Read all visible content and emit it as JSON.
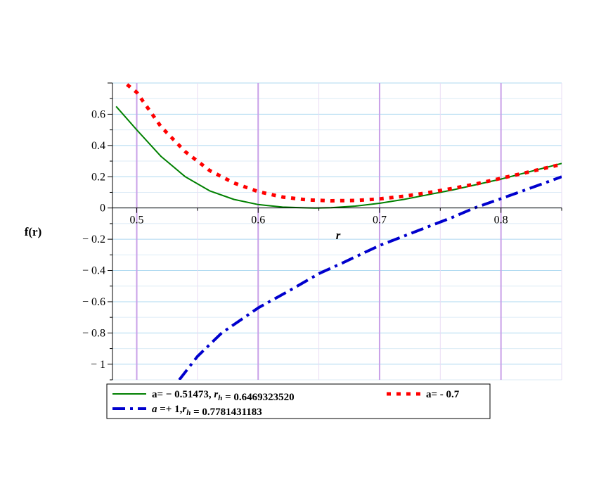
{
  "chart_data": {
    "type": "line",
    "xlabel": "r",
    "ylabel": "f(r)",
    "xlim": [
      0.48,
      0.85
    ],
    "ylim": [
      -1.1,
      0.8
    ],
    "x_ticks": [
      0.5,
      0.6,
      0.7,
      0.8
    ],
    "x_tick_labels": [
      "0.5",
      "0.6",
      "0.7",
      "0.8"
    ],
    "y_ticks": [
      0.6,
      0.4,
      0.2,
      0,
      -0.2,
      -0.4,
      -0.6,
      -0.8,
      -1
    ],
    "y_tick_labels": [
      "0.6",
      "0.4",
      "0.2",
      "0",
      "− 0.2",
      "− 0.4",
      "− 0.6",
      "− 0.8",
      "− 1"
    ],
    "grid": true,
    "legend_position": "bottom",
    "series": [
      {
        "label_parts": [
          {
            "t": "a= − 0.51473, ",
            "i": false
          },
          {
            "t": "r",
            "i": true
          },
          {
            "t": "h",
            "i": true,
            "sub": true
          },
          {
            "t": " = 0.6469323520",
            "i": false
          }
        ],
        "color": "#008000",
        "style": "solid",
        "x": [
          0.483,
          0.5,
          0.52,
          0.54,
          0.56,
          0.58,
          0.6,
          0.62,
          0.64,
          0.647,
          0.66,
          0.68,
          0.7,
          0.72,
          0.74,
          0.76,
          0.78,
          0.8,
          0.82,
          0.85
        ],
        "y": [
          0.65,
          0.5,
          0.33,
          0.2,
          0.11,
          0.055,
          0.022,
          0.006,
          0.001,
          0.0,
          0.002,
          0.012,
          0.03,
          0.055,
          0.085,
          0.115,
          0.15,
          0.185,
          0.225,
          0.285
        ]
      },
      {
        "label_parts": [
          {
            "t": "a= - 0.7",
            "i": false
          }
        ],
        "color": "#ff0000",
        "style": "dotted",
        "x": [
          0.492,
          0.5,
          0.52,
          0.54,
          0.56,
          0.58,
          0.6,
          0.62,
          0.64,
          0.66,
          0.68,
          0.7,
          0.72,
          0.74,
          0.76,
          0.78,
          0.8,
          0.82,
          0.85
        ],
        "y": [
          0.79,
          0.74,
          0.52,
          0.36,
          0.24,
          0.16,
          0.105,
          0.07,
          0.052,
          0.046,
          0.048,
          0.058,
          0.075,
          0.098,
          0.125,
          0.155,
          0.19,
          0.225,
          0.28
        ]
      },
      {
        "label_parts": [
          {
            "t": "a",
            "i": true
          },
          {
            "t": " =+ 1,",
            "i": false
          },
          {
            "t": "r",
            "i": true
          },
          {
            "t": "h",
            "i": true,
            "sub": true
          },
          {
            "t": " = 0.7781431183",
            "i": false
          }
        ],
        "color": "#0000cd",
        "style": "dashdot",
        "x": [
          0.535,
          0.55,
          0.57,
          0.6,
          0.63,
          0.65,
          0.67,
          0.7,
          0.72,
          0.74,
          0.76,
          0.778,
          0.8,
          0.82,
          0.85
        ],
        "y": [
          -1.1,
          -0.95,
          -0.8,
          -0.64,
          -0.51,
          -0.42,
          -0.35,
          -0.24,
          -0.18,
          -0.12,
          -0.06,
          0.0,
          0.06,
          0.115,
          0.2
        ]
      }
    ]
  }
}
